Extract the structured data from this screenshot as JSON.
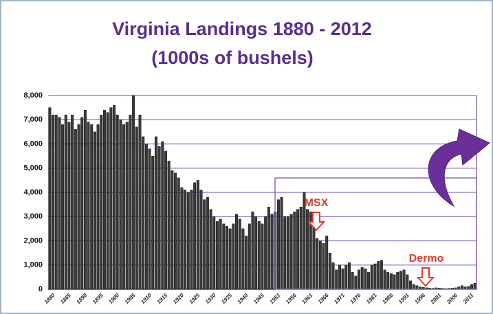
{
  "chart_data": {
    "type": "bar",
    "title": "Virginia Landings 1880 - 2012",
    "subtitle": "(1000s of bushels)",
    "categories": [
      "1880",
      null,
      null,
      null,
      null,
      "1885",
      null,
      null,
      null,
      null,
      "1890",
      null,
      null,
      null,
      null,
      "1895",
      null,
      null,
      null,
      null,
      "1900",
      null,
      null,
      null,
      null,
      "1905",
      null,
      null,
      null,
      null,
      "1910",
      null,
      null,
      null,
      null,
      "1915",
      null,
      null,
      null,
      null,
      "1920",
      null,
      null,
      null,
      null,
      "1925",
      null,
      null,
      null,
      null,
      "1930",
      null,
      null,
      null,
      null,
      "1935",
      null,
      null,
      null,
      null,
      "1940",
      null,
      null,
      null,
      null,
      "1945",
      null,
      null,
      null,
      null,
      "1951",
      null,
      null,
      null,
      null,
      "1956",
      null,
      null,
      null,
      null,
      "1961",
      null,
      null,
      null,
      null,
      "1966",
      null,
      null,
      null,
      null,
      "1971",
      null,
      null,
      null,
      null,
      "1976",
      null,
      null,
      null,
      null,
      "1981",
      null,
      null,
      null,
      null,
      "1986",
      null,
      null,
      null,
      null,
      "1991",
      null,
      null,
      null,
      null,
      "1996",
      null,
      null,
      null,
      null,
      "2001",
      null,
      null,
      null,
      null,
      "2006",
      null,
      null,
      null,
      null,
      "2011",
      null,
      null
    ],
    "values": [
      7500,
      7200,
      7200,
      7100,
      6800,
      7200,
      6900,
      7200,
      6600,
      6800,
      7100,
      7400,
      6900,
      6800,
      6500,
      6800,
      7200,
      7400,
      7300,
      7500,
      7600,
      7200,
      7000,
      6800,
      6900,
      7200,
      8000,
      6700,
      7200,
      6300,
      6000,
      5800,
      5500,
      6300,
      5900,
      6100,
      5700,
      5300,
      4900,
      4800,
      4600,
      4200,
      4100,
      4000,
      4100,
      4400,
      4500,
      4100,
      3700,
      3800,
      3300,
      3000,
      2800,
      2900,
      2700,
      2600,
      2500,
      2700,
      3100,
      2900,
      2500,
      2200,
      2700,
      3200,
      3000,
      2800,
      2700,
      3000,
      3400,
      3100,
      3200,
      3700,
      3800,
      3000,
      3000,
      3100,
      3200,
      3300,
      3400,
      4000,
      3300,
      3200,
      2700,
      2100,
      2000,
      1900,
      2200,
      1500,
      1100,
      800,
      1000,
      850,
      1000,
      1100,
      700,
      550,
      800,
      900,
      850,
      700,
      1000,
      1050,
      1150,
      1200,
      800,
      700,
      650,
      600,
      700,
      750,
      800,
      600,
      350,
      200,
      150,
      100,
      80,
      60,
      50,
      40,
      60,
      50,
      40,
      30,
      40,
      50,
      60,
      100,
      150,
      100,
      120,
      200,
      250
    ],
    "color": "#3a3a3a",
    "ylim": [
      0,
      8000
    ],
    "yticks": [
      0,
      {
        "value": 1000,
        "label": "1,000"
      },
      {
        "value": 2000,
        "label": "2,000"
      },
      {
        "value": 3000,
        "label": "3,000"
      },
      {
        "value": 4000,
        "label": "4,000"
      },
      {
        "value": 5000,
        "label": "5,000"
      },
      {
        "value": 6000,
        "label": "6,000"
      },
      {
        "value": 7000,
        "label": "7,000"
      },
      {
        "value": 8000,
        "label": "8,000"
      }
    ],
    "grid": true,
    "annotations": [
      "MSX",
      "Dermo"
    ]
  }
}
